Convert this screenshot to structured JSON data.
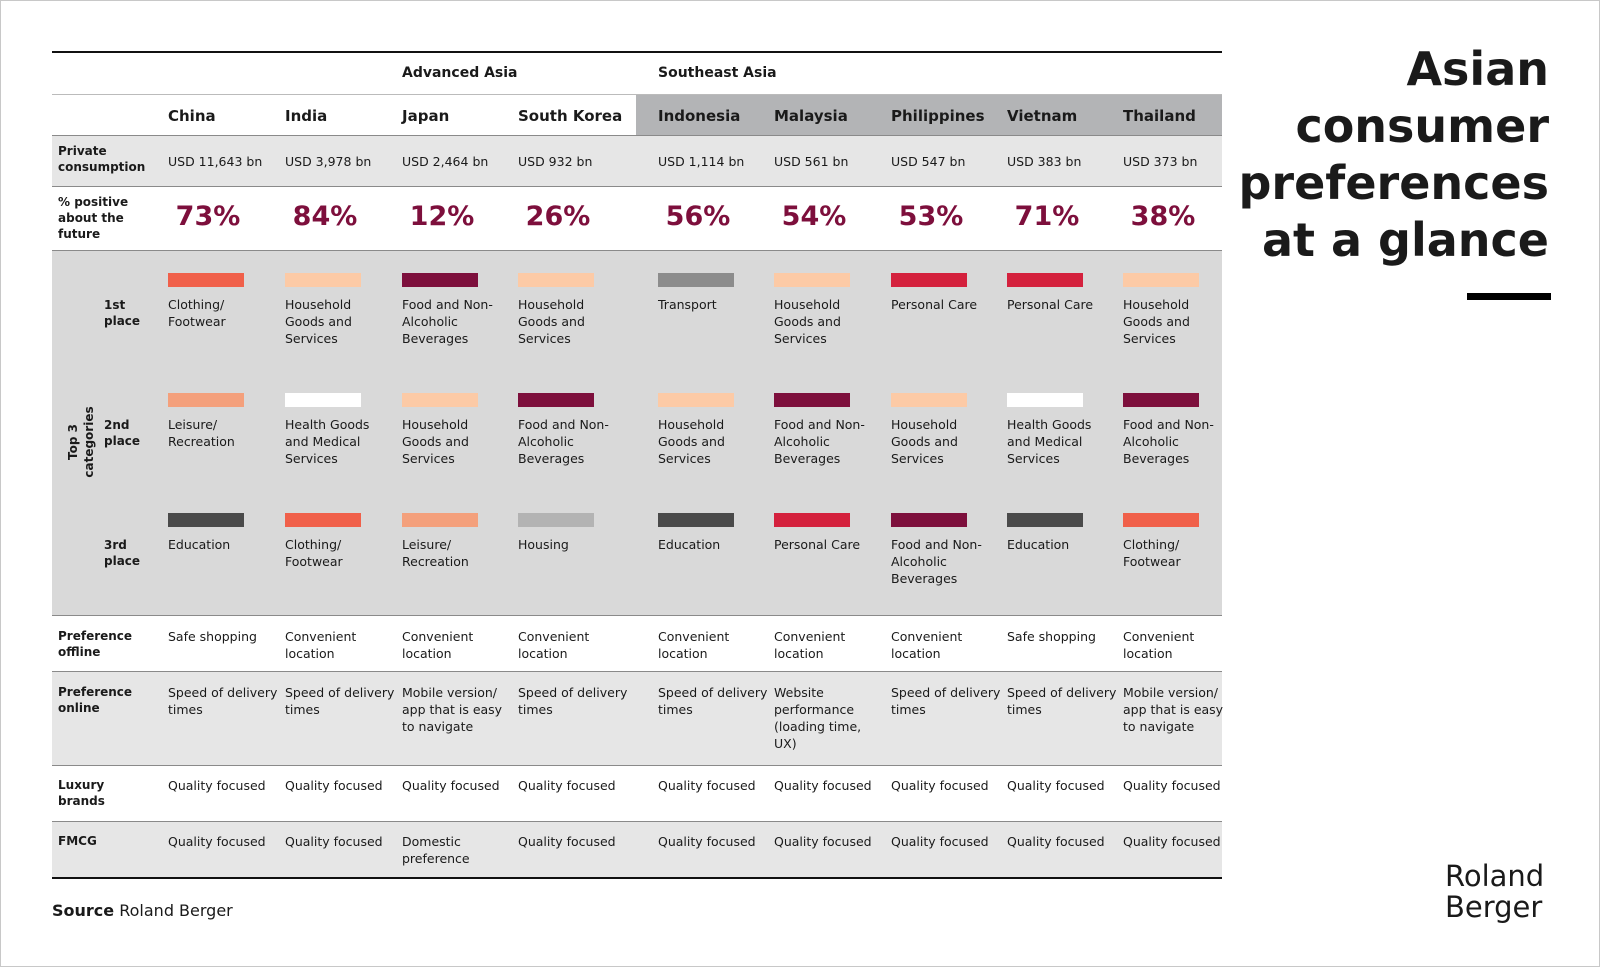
{
  "title": "Asian consumer preferences at a glance",
  "regions": [
    "Advanced Asia",
    "Southeast Asia"
  ],
  "countries": [
    "China",
    "India",
    "Japan",
    "South Korea",
    "Indonesia",
    "Malaysia",
    "Philippines",
    "Vietnam",
    "Thailand"
  ],
  "private_consumption": {
    "label": "Private consumption",
    "values": [
      "USD 11,643 bn",
      "USD 3,978 bn",
      "USD 2,464 bn",
      "USD 932 bn",
      "USD 1,114 bn",
      "USD 561 bn",
      "USD 547 bn",
      "USD 383 bn",
      "USD 373 bn"
    ]
  },
  "positive": {
    "label": "% positive about the future",
    "values": [
      "73%",
      "84%",
      "12%",
      "26%",
      "56%",
      "54%",
      "53%",
      "71%",
      "38%"
    ]
  },
  "top_categories": {
    "label": "Top 3 categories",
    "places": [
      {
        "label": "1st place",
        "items": [
          {
            "name": "Clothing/ Footwear",
            "color": "#f0604a"
          },
          {
            "name": "Household Goods and Services",
            "color": "#fccaa6"
          },
          {
            "name": "Food and Non-Alcoholic Beverages",
            "color": "#7d0f3c"
          },
          {
            "name": "Household Goods and Services",
            "color": "#fccaa6"
          },
          {
            "name": "Transport",
            "color": "#8c8c8c"
          },
          {
            "name": "Household Goods and Services",
            "color": "#fccaa6"
          },
          {
            "name": "Personal Care",
            "color": "#d4213d"
          },
          {
            "name": "Personal Care",
            "color": "#d4213d"
          },
          {
            "name": "Household Goods and Services",
            "color": "#fccaa6"
          }
        ]
      },
      {
        "label": "2nd place",
        "items": [
          {
            "name": "Leisure/ Recreation",
            "color": "#f4a07c"
          },
          {
            "name": "Health Goods and Medical Services",
            "color": "#ffffff"
          },
          {
            "name": "Household Goods and Services",
            "color": "#fccaa6"
          },
          {
            "name": "Food and Non-Alcoholic Beverages",
            "color": "#7d0f3c"
          },
          {
            "name": "Household Goods and Services",
            "color": "#fccaa6"
          },
          {
            "name": "Food and Non-Alcoholic Beverages",
            "color": "#7d0f3c"
          },
          {
            "name": "Household Goods and Services",
            "color": "#fccaa6"
          },
          {
            "name": "Health Goods and Medical Services",
            "color": "#ffffff"
          },
          {
            "name": "Food and Non-Alcoholic Beverages",
            "color": "#7d0f3c"
          }
        ]
      },
      {
        "label": "3rd place",
        "items": [
          {
            "name": "Education",
            "color": "#4a4a4a"
          },
          {
            "name": "Clothing/ Footwear",
            "color": "#f0604a"
          },
          {
            "name": "Leisure/ Recreation",
            "color": "#f4a07c"
          },
          {
            "name": "Housing",
            "color": "#b3b3b3"
          },
          {
            "name": "Education",
            "color": "#4a4a4a"
          },
          {
            "name": "Personal Care",
            "color": "#d4213d"
          },
          {
            "name": "Food and Non-Alcoholic Beverages",
            "color": "#7d0f3c"
          },
          {
            "name": "Education",
            "color": "#4a4a4a"
          },
          {
            "name": "Clothing/ Footwear",
            "color": "#f0604a"
          }
        ]
      }
    ]
  },
  "preference_offline": {
    "label": "Preference offline",
    "values": [
      "Safe shopping",
      "Convenient location",
      "Convenient location",
      "Convenient location",
      "Convenient location",
      "Convenient location",
      "Convenient location",
      "Safe shopping",
      "Convenient location"
    ]
  },
  "preference_online": {
    "label": "Preference online",
    "values": [
      "Speed of delivery times",
      "Speed of delivery times",
      "Mobile version/ app that is easy to navigate",
      "Speed of delivery times",
      "Speed of delivery times",
      "Website performance (loading time, UX)",
      "Speed of delivery times",
      "Speed of delivery times",
      "Mobile version/ app that is easy to navigate"
    ]
  },
  "luxury_brands": {
    "label": "Luxury brands",
    "values": [
      "Quality focused",
      "Quality focused",
      "Quality focused",
      "Quality focused",
      "Quality focused",
      "Quality focused",
      "Quality focused",
      "Quality focused",
      "Quality focused"
    ]
  },
  "fmcg": {
    "label": "FMCG",
    "values": [
      "Quality focused",
      "Quality focused",
      "Domestic preference",
      "Quality focused",
      "Quality focused",
      "Quality focused",
      "Quality focused",
      "Quality focused",
      "Quality focused"
    ]
  },
  "source": {
    "label": "Source",
    "text": "Roland Berger"
  },
  "logo": "Roland Berger"
}
